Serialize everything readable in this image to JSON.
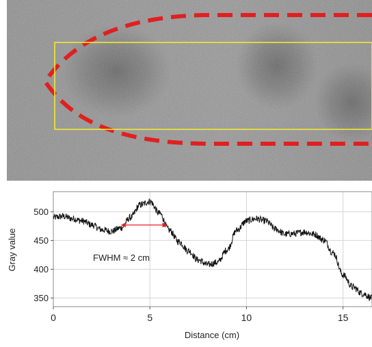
{
  "image": {
    "roi_outline_color": "#e02020",
    "analysis_box_color": "#f2ea30"
  },
  "chart_data": {
    "type": "line",
    "xlabel": "Distance (cm)",
    "ylabel": "Gray value",
    "xlim": [
      0,
      16.5
    ],
    "ylim": [
      335,
      535
    ],
    "xticks": [
      0,
      5,
      10,
      15
    ],
    "yticks": [
      350,
      400,
      450,
      500
    ],
    "grid": true,
    "line_color": "#111111",
    "series": [
      {
        "x": [
          0,
          0.5,
          1,
          1.5,
          2,
          2.5,
          3,
          3.5,
          4,
          4.5,
          5,
          5.5,
          6,
          6.5,
          7,
          7.5,
          8,
          8.5,
          9,
          9.5,
          10,
          10.5,
          11,
          11.5,
          12,
          12.5,
          13,
          13.5,
          14,
          14.5,
          15,
          15.5,
          16,
          16.5
        ],
        "values": [
          490,
          492,
          488,
          484,
          477,
          469,
          466,
          472,
          490,
          512,
          518,
          497,
          468,
          448,
          432,
          416,
          408,
          412,
          434,
          468,
          484,
          488,
          484,
          470,
          461,
          462,
          465,
          461,
          451,
          428,
          390,
          369,
          358,
          350
        ]
      }
    ],
    "annotation": {
      "label": "FWHM ≈ 2 cm",
      "arrow_from_x": 3.5,
      "arrow_to_x": 5.9,
      "arrow_y": 477,
      "color": "#e02020"
    }
  }
}
